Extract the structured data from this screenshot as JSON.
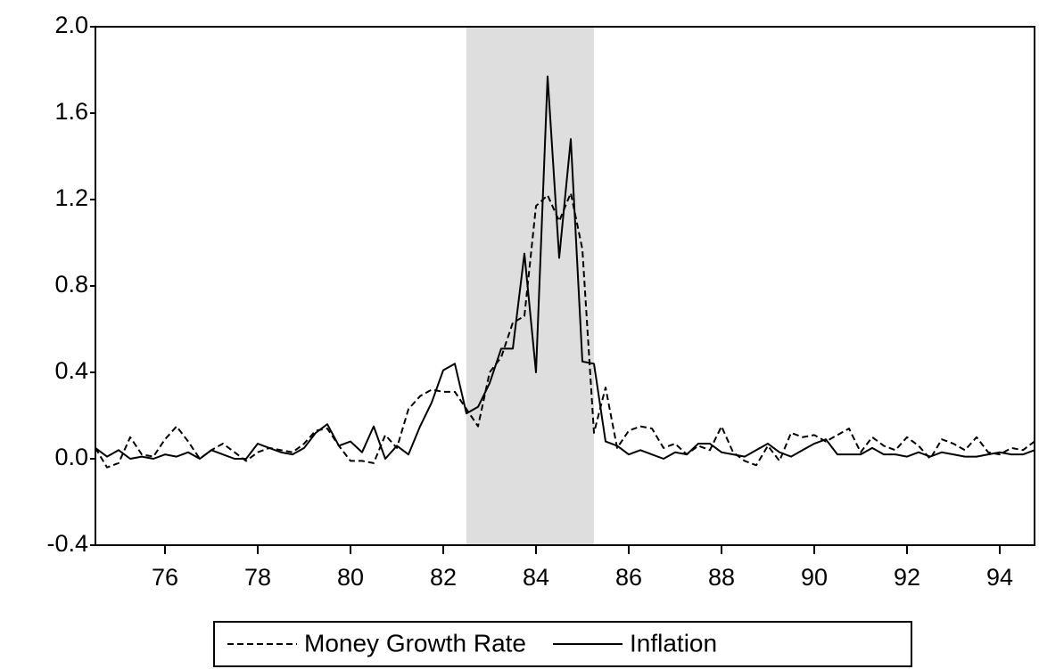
{
  "chart_data": {
    "type": "line",
    "x": [
      74.5,
      74.75,
      75,
      75.25,
      75.5,
      75.75,
      76,
      76.25,
      76.5,
      76.75,
      77,
      77.25,
      77.5,
      77.75,
      78,
      78.25,
      78.5,
      78.75,
      79,
      79.25,
      79.5,
      79.75,
      80,
      80.25,
      80.5,
      80.75,
      81,
      81.25,
      81.5,
      81.75,
      82,
      82.25,
      82.5,
      82.75,
      83,
      83.25,
      83.5,
      83.75,
      84,
      84.25,
      84.5,
      84.75,
      85,
      85.25,
      85.5,
      85.75,
      86,
      86.25,
      86.5,
      86.75,
      87,
      87.25,
      87.5,
      87.75,
      88,
      88.25,
      88.5,
      88.75,
      89,
      89.25,
      89.5,
      89.75,
      90,
      90.25,
      90.5,
      90.75,
      91,
      91.25,
      91.5,
      91.75,
      92,
      92.25,
      92.5,
      92.75,
      93,
      93.25,
      93.5,
      93.75,
      94,
      94.25,
      94.5,
      94.75
    ],
    "series": [
      {
        "name": "Money Growth Rate",
        "color": "#000000",
        "dash": true,
        "values": [
          0.05,
          -0.04,
          -0.02,
          0.1,
          0.02,
          0.01,
          0.09,
          0.15,
          0.08,
          0.0,
          0.04,
          0.07,
          0.03,
          -0.01,
          0.03,
          0.05,
          0.04,
          0.03,
          0.07,
          0.13,
          0.14,
          0.06,
          -0.01,
          -0.01,
          -0.02,
          0.11,
          0.05,
          0.23,
          0.29,
          0.32,
          0.31,
          0.31,
          0.23,
          0.15,
          0.4,
          0.47,
          0.63,
          0.66,
          1.17,
          1.22,
          1.1,
          1.23,
          0.97,
          0.12,
          0.33,
          0.05,
          0.13,
          0.15,
          0.14,
          0.05,
          0.07,
          0.02,
          0.06,
          0.04,
          0.15,
          0.03,
          -0.01,
          -0.03,
          0.06,
          -0.01,
          0.12,
          0.1,
          0.11,
          0.08,
          0.11,
          0.14,
          0.03,
          0.1,
          0.06,
          0.04,
          0.1,
          0.06,
          0.0,
          0.09,
          0.07,
          0.04,
          0.1,
          0.03,
          0.02,
          0.05,
          0.04,
          0.08
        ]
      },
      {
        "name": "Inflation",
        "color": "#000000",
        "dash": false,
        "values": [
          0.05,
          0.01,
          0.04,
          0.0,
          0.01,
          0.0,
          0.02,
          0.01,
          0.03,
          0.0,
          0.04,
          0.02,
          0.0,
          0.0,
          0.07,
          0.05,
          0.03,
          0.02,
          0.05,
          0.12,
          0.16,
          0.06,
          0.08,
          0.03,
          0.15,
          0.0,
          0.06,
          0.02,
          0.15,
          0.26,
          0.41,
          0.44,
          0.21,
          0.24,
          0.35,
          0.51,
          0.51,
          0.95,
          0.4,
          1.77,
          0.93,
          1.48,
          0.45,
          0.44,
          0.08,
          0.06,
          0.02,
          0.04,
          0.02,
          0.0,
          0.03,
          0.02,
          0.07,
          0.07,
          0.03,
          0.02,
          0.01,
          0.04,
          0.07,
          0.03,
          0.01,
          0.04,
          0.07,
          0.09,
          0.02,
          0.02,
          0.02,
          0.05,
          0.02,
          0.02,
          0.01,
          0.03,
          0.01,
          0.03,
          0.02,
          0.01,
          0.01,
          0.02,
          0.03,
          0.02,
          0.02,
          0.04
        ]
      }
    ],
    "shade": [
      82.5,
      85.25
    ],
    "xlim": [
      74.5,
      94.75
    ],
    "xticks": [
      76,
      78,
      80,
      82,
      84,
      86,
      88,
      90,
      92,
      94
    ],
    "ylim": [
      -0.4,
      2.0
    ],
    "yticks": [
      -0.4,
      {
        "value": 0,
        "label": "0.0"
      },
      0.4,
      0.8,
      1.2,
      1.6,
      {
        "value": 2,
        "label": "2.0"
      }
    ],
    "grid": false,
    "legend": "bottom"
  }
}
